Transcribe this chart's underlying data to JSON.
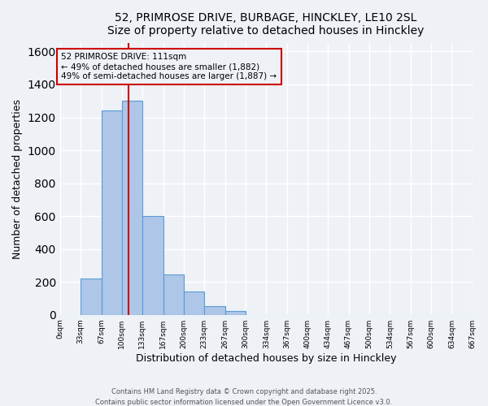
{
  "title_line1": "52, PRIMROSE DRIVE, BURBAGE, HINCKLEY, LE10 2SL",
  "title_line2": "Size of property relative to detached houses in Hinckley",
  "xlabel": "Distribution of detached houses by size in Hinckley",
  "ylabel": "Number of detached properties",
  "bar_edges": [
    0,
    33,
    67,
    100,
    133,
    167,
    200,
    233,
    267,
    300,
    334,
    367,
    400,
    434,
    467,
    500,
    534,
    567,
    600,
    634,
    667
  ],
  "bar_heights": [
    0,
    220,
    1240,
    1300,
    600,
    245,
    140,
    55,
    22,
    0,
    0,
    0,
    0,
    0,
    0,
    0,
    0,
    0,
    0,
    0
  ],
  "bar_color": "#aec6e8",
  "bar_edgecolor": "#5b9bd5",
  "vline_x": 111,
  "vline_color": "#cc0000",
  "annotation_title": "52 PRIMROSE DRIVE: 111sqm",
  "annotation_line2": "← 49% of detached houses are smaller (1,882)",
  "annotation_line3": "49% of semi-detached houses are larger (1,887) →",
  "annotation_box_color": "#cc0000",
  "ylim": [
    0,
    1650
  ],
  "yticks": [
    0,
    200,
    400,
    600,
    800,
    1000,
    1200,
    1400,
    1600
  ],
  "xtick_labels": [
    "0sqm",
    "33sqm",
    "67sqm",
    "100sqm",
    "133sqm",
    "167sqm",
    "200sqm",
    "233sqm",
    "267sqm",
    "300sqm",
    "334sqm",
    "367sqm",
    "400sqm",
    "434sqm",
    "467sqm",
    "500sqm",
    "534sqm",
    "567sqm",
    "600sqm",
    "634sqm",
    "667sqm"
  ],
  "footer_line1": "Contains HM Land Registry data © Crown copyright and database right 2025.",
  "footer_line2": "Contains public sector information licensed under the Open Government Licence v3.0.",
  "background_color": "#eef2f7",
  "grid_color": "#ffffff"
}
